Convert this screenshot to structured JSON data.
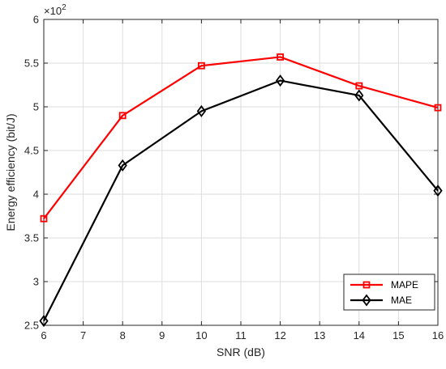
{
  "chart_data": {
    "type": "line",
    "title": "",
    "xlabel": "SNR (dB)",
    "ylabel": "Energy efficiency (bit/J)",
    "y_exponent_label": "×10",
    "y_exponent_power": "2",
    "xlim": [
      6,
      16
    ],
    "ylim": [
      2.5,
      6
    ],
    "x_ticks": [
      6,
      7,
      8,
      9,
      10,
      11,
      12,
      13,
      14,
      15,
      16
    ],
    "y_ticks": [
      2.5,
      3,
      3.5,
      4,
      4.5,
      5,
      5.5,
      6
    ],
    "x_tick_labels": [
      "6",
      "7",
      "8",
      "9",
      "10",
      "11",
      "12",
      "13",
      "14",
      "15",
      "16"
    ],
    "y_tick_labels": [
      "2.5",
      "3",
      "3.5",
      "4",
      "4.5",
      "5",
      "5.5",
      "6"
    ],
    "grid": true,
    "legend_position": "bottom-right",
    "x": [
      6,
      8,
      10,
      12,
      14,
      16
    ],
    "series": [
      {
        "name": "MAPE",
        "color": "#ff0000",
        "marker": "square",
        "values": [
          3.72,
          4.9,
          5.47,
          5.57,
          5.24,
          4.99
        ]
      },
      {
        "name": "MAE",
        "color": "#000000",
        "marker": "diamond",
        "values": [
          2.55,
          4.33,
          4.95,
          5.3,
          5.13,
          4.04
        ]
      }
    ]
  }
}
